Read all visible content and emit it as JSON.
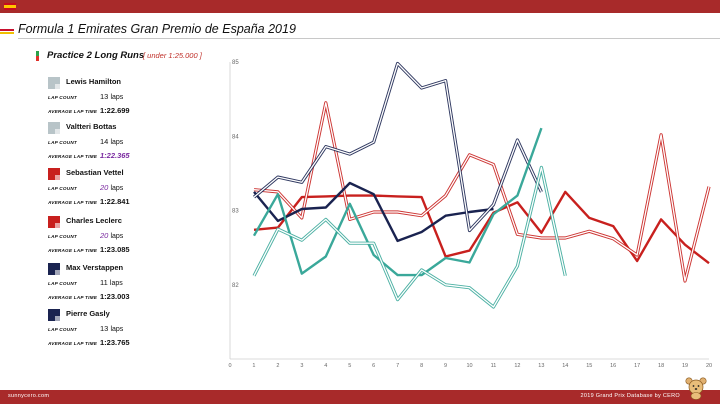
{
  "header": {
    "title": "Formula 1 Emirates Gran Premio de España 2019"
  },
  "session": {
    "name": "Practice 2 Long Runs",
    "subtitle": "[ under 1:25.000 ]"
  },
  "labels": {
    "lap_count": "LAP COUNT",
    "avg_lap": "AVERAGE LAP TIME",
    "laps_unit": "laps"
  },
  "drivers": [
    {
      "name": "Lewis Hamilton",
      "laps": "13",
      "avg": "1:22.699",
      "color": "#b8c4c8",
      "laps_best": false,
      "avg_best": false
    },
    {
      "name": "Valtteri Bottas",
      "laps": "14",
      "avg": "1:22.365",
      "color": "#b8c4c8",
      "laps_best": false,
      "avg_best": true
    },
    {
      "name": "Sebastian Vettel",
      "laps": "20",
      "avg": "1:22.841",
      "color": "#c8201e",
      "laps_best": true,
      "avg_best": false
    },
    {
      "name": "Charles Leclerc",
      "laps": "20",
      "avg": "1:23.085",
      "color": "#c8201e",
      "laps_best": true,
      "avg_best": false
    },
    {
      "name": "Max Verstappen",
      "laps": "11",
      "avg": "1:23.003",
      "color": "#1a2350",
      "laps_best": false,
      "avg_best": false
    },
    {
      "name": "Pierre Gasly",
      "laps": "13",
      "avg": "1:23.765",
      "color": "#1a2350",
      "laps_best": false,
      "avg_best": false
    }
  ],
  "chart_data": {
    "type": "line",
    "xlim": [
      0,
      20
    ],
    "ylim": [
      81,
      85
    ],
    "x_ticks": [
      0,
      1,
      2,
      3,
      4,
      5,
      6,
      7,
      8,
      9,
      10,
      11,
      12,
      13,
      14,
      15,
      16,
      17,
      18,
      19,
      20
    ],
    "y_ticks": [
      82,
      83,
      84,
      85
    ],
    "grid": false,
    "series": [
      {
        "team": "ferrari",
        "color": "#c8201e",
        "style": "solid",
        "x": [
          1,
          2,
          3,
          4,
          5,
          6,
          7,
          8,
          9,
          10,
          11,
          12,
          13,
          14,
          15,
          16,
          17,
          18,
          19,
          20
        ],
        "y": [
          82.74,
          82.77,
          83.18,
          83.19,
          83.2,
          83.2,
          83.19,
          83.18,
          82.38,
          82.46,
          82.97,
          83.11,
          82.7,
          83.25,
          82.9,
          82.79,
          82.32,
          82.88,
          82.54,
          82.29
        ]
      },
      {
        "team": "ferrari",
        "color": "#c8201e",
        "style": "double",
        "x": [
          1,
          2,
          3,
          4,
          5,
          6,
          7,
          8,
          9,
          10,
          11,
          12,
          13,
          14,
          15,
          16,
          17,
          18,
          19,
          20
        ],
        "y": [
          83.28,
          83.25,
          82.9,
          84.45,
          82.88,
          82.98,
          82.98,
          82.93,
          83.2,
          83.75,
          83.62,
          82.68,
          82.63,
          82.63,
          82.72,
          82.62,
          82.4,
          84.02,
          82.05,
          83.32
        ]
      },
      {
        "team": "redbull",
        "color": "#1a2350",
        "style": "solid",
        "x": [
          1,
          2,
          3,
          4,
          5,
          6,
          7,
          8,
          9,
          10,
          11
        ],
        "y": [
          83.25,
          82.86,
          83.02,
          83.04,
          83.37,
          83.22,
          82.59,
          82.71,
          82.93,
          82.98,
          83.02
        ]
      },
      {
        "team": "redbull",
        "color": "#1a2350",
        "style": "double",
        "x": [
          1,
          2,
          3,
          4,
          5,
          6,
          7,
          8,
          9,
          10,
          11,
          12,
          13
        ],
        "y": [
          83.18,
          83.45,
          83.38,
          83.86,
          83.76,
          83.92,
          84.98,
          84.65,
          84.75,
          82.73,
          83.08,
          83.95,
          83.25
        ]
      },
      {
        "team": "mercedes",
        "color": "#3aa89a",
        "style": "solid",
        "x": [
          1,
          2,
          3,
          4,
          5,
          6,
          7,
          8,
          9,
          10,
          11,
          12,
          13
        ],
        "y": [
          82.66,
          83.22,
          82.15,
          82.38,
          83.09,
          82.4,
          82.13,
          82.13,
          82.36,
          82.3,
          82.95,
          83.2,
          84.11
        ]
      },
      {
        "team": "mercedes",
        "color": "#3aa89a",
        "style": "double",
        "x": [
          1,
          2,
          3,
          4,
          5,
          6,
          7,
          8,
          9,
          10,
          11,
          12,
          13,
          14
        ],
        "y": [
          82.12,
          82.75,
          82.6,
          82.88,
          82.56,
          82.56,
          81.8,
          82.2,
          82.0,
          81.96,
          81.7,
          82.25,
          83.58,
          82.12
        ]
      }
    ]
  },
  "footer": {
    "left": "sunnycero.com",
    "right": "2019 Grand Prix Database by CERO"
  }
}
